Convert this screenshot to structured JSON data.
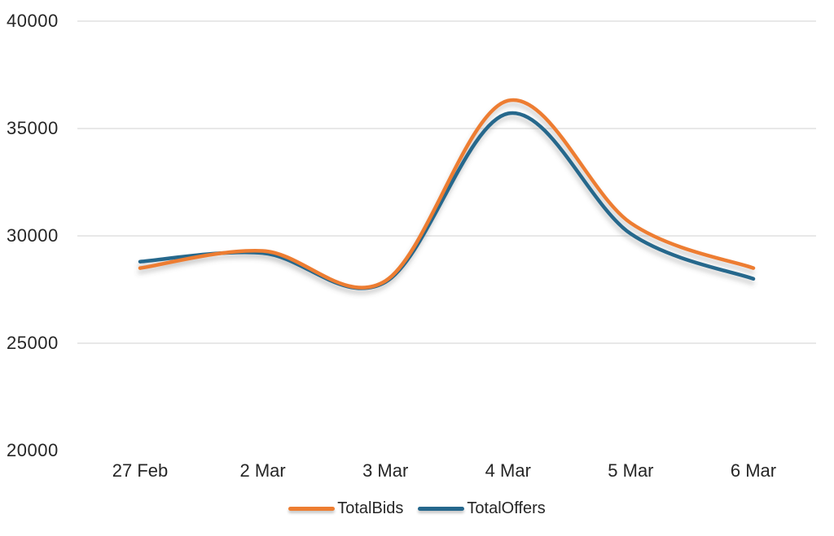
{
  "chart_data": {
    "type": "line",
    "smooth": true,
    "title": "",
    "xlabel": "",
    "ylabel": "",
    "categories": [
      "27 Feb",
      "2 Mar",
      "3 Mar",
      "4 Mar",
      "5 Mar",
      "6 Mar"
    ],
    "series": [
      {
        "name": "TotalBids",
        "color": "#ED7D31",
        "values": [
          28500,
          29300,
          27900,
          36300,
          30600,
          28500
        ]
      },
      {
        "name": "TotalOffers",
        "color": "#25678C",
        "values": [
          28800,
          29200,
          27850,
          35700,
          30100,
          28000
        ]
      }
    ],
    "ylim": [
      20000,
      40000
    ],
    "ytick_labels": [
      "40000",
      "35000",
      "30000",
      "25000",
      "20000"
    ],
    "ytick_values": [
      40000,
      35000,
      30000,
      25000,
      20000
    ],
    "gridline_values": [
      40000,
      35000,
      30000,
      25000
    ],
    "gridline_color": "#E8E8E8",
    "legend_position": "bottom",
    "background_color": "#FFFFFF"
  }
}
